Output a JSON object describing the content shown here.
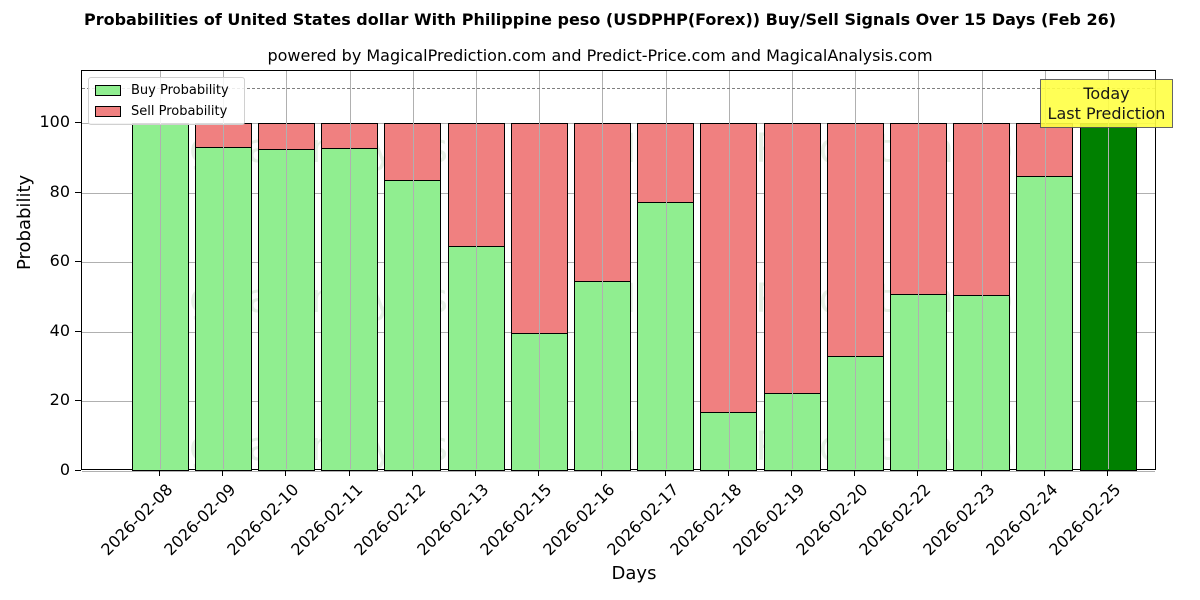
{
  "header": {
    "title": "Probabilities of United States dollar With Philippine peso (USDPHP(Forex)) Buy/Sell Signals Over 15 Days (Feb 26)",
    "subtitle": "powered by MagicalPrediction.com and Predict-Price.com and MagicalAnalysis.com"
  },
  "legend": {
    "buy_label": "Buy Probability",
    "sell_label": "Sell Probability"
  },
  "annotation": {
    "line1": "Today",
    "line2": "Last Prediction"
  },
  "axes": {
    "xlabel": "Days",
    "ylabel": "Probability",
    "yticks": [
      "0",
      "20",
      "40",
      "60",
      "80",
      "100"
    ]
  },
  "watermarks": [
    "MagicalAnalysis.com",
    "MagicalPrediction.com"
  ],
  "colors": {
    "buy": "#90ee90",
    "sell": "#f08080",
    "today": "#008000",
    "annotation_bg": "#ffff44"
  },
  "chart_data": {
    "type": "bar",
    "stacked": true,
    "title": "Probabilities of United States dollar With Philippine peso (USDPHP(Forex)) Buy/Sell Signals Over 15 Days (Feb 26)",
    "subtitle": "powered by MagicalPrediction.com and Predict-Price.com and MagicalAnalysis.com",
    "xlabel": "Days",
    "ylabel": "Probability",
    "ylim": [
      0,
      115
    ],
    "yticks": [
      0,
      20,
      40,
      60,
      80,
      100
    ],
    "grid": true,
    "legend_position": "upper left",
    "reference_line": {
      "y": 110,
      "style": "dashed",
      "color": "#808080"
    },
    "annotation": {
      "text": "Today\nLast Prediction",
      "x": "2026-02-25"
    },
    "categories": [
      "2026-02-08",
      "2026-02-09",
      "2026-02-10",
      "2026-02-11",
      "2026-02-12",
      "2026-02-13",
      "2026-02-15",
      "2026-02-16",
      "2026-02-17",
      "2026-02-18",
      "2026-02-19",
      "2026-02-20",
      "2026-02-22",
      "2026-02-23",
      "2026-02-24",
      "2026-02-25"
    ],
    "series": [
      {
        "name": "Buy Probability",
        "color": "#90ee90",
        "values": [
          100,
          93.2,
          92.5,
          93.0,
          83.6,
          64.7,
          39.7,
          54.7,
          77.4,
          17.1,
          22.5,
          33.0,
          50.8,
          50.5,
          84.8,
          100
        ]
      },
      {
        "name": "Sell Probability",
        "color": "#f08080",
        "values": [
          0,
          6.8,
          7.5,
          7.0,
          16.4,
          35.3,
          60.3,
          45.3,
          22.6,
          82.9,
          77.5,
          67.0,
          49.2,
          49.5,
          15.2,
          0
        ]
      }
    ],
    "highlight": {
      "category": "2026-02-25",
      "color": "#008000"
    }
  }
}
